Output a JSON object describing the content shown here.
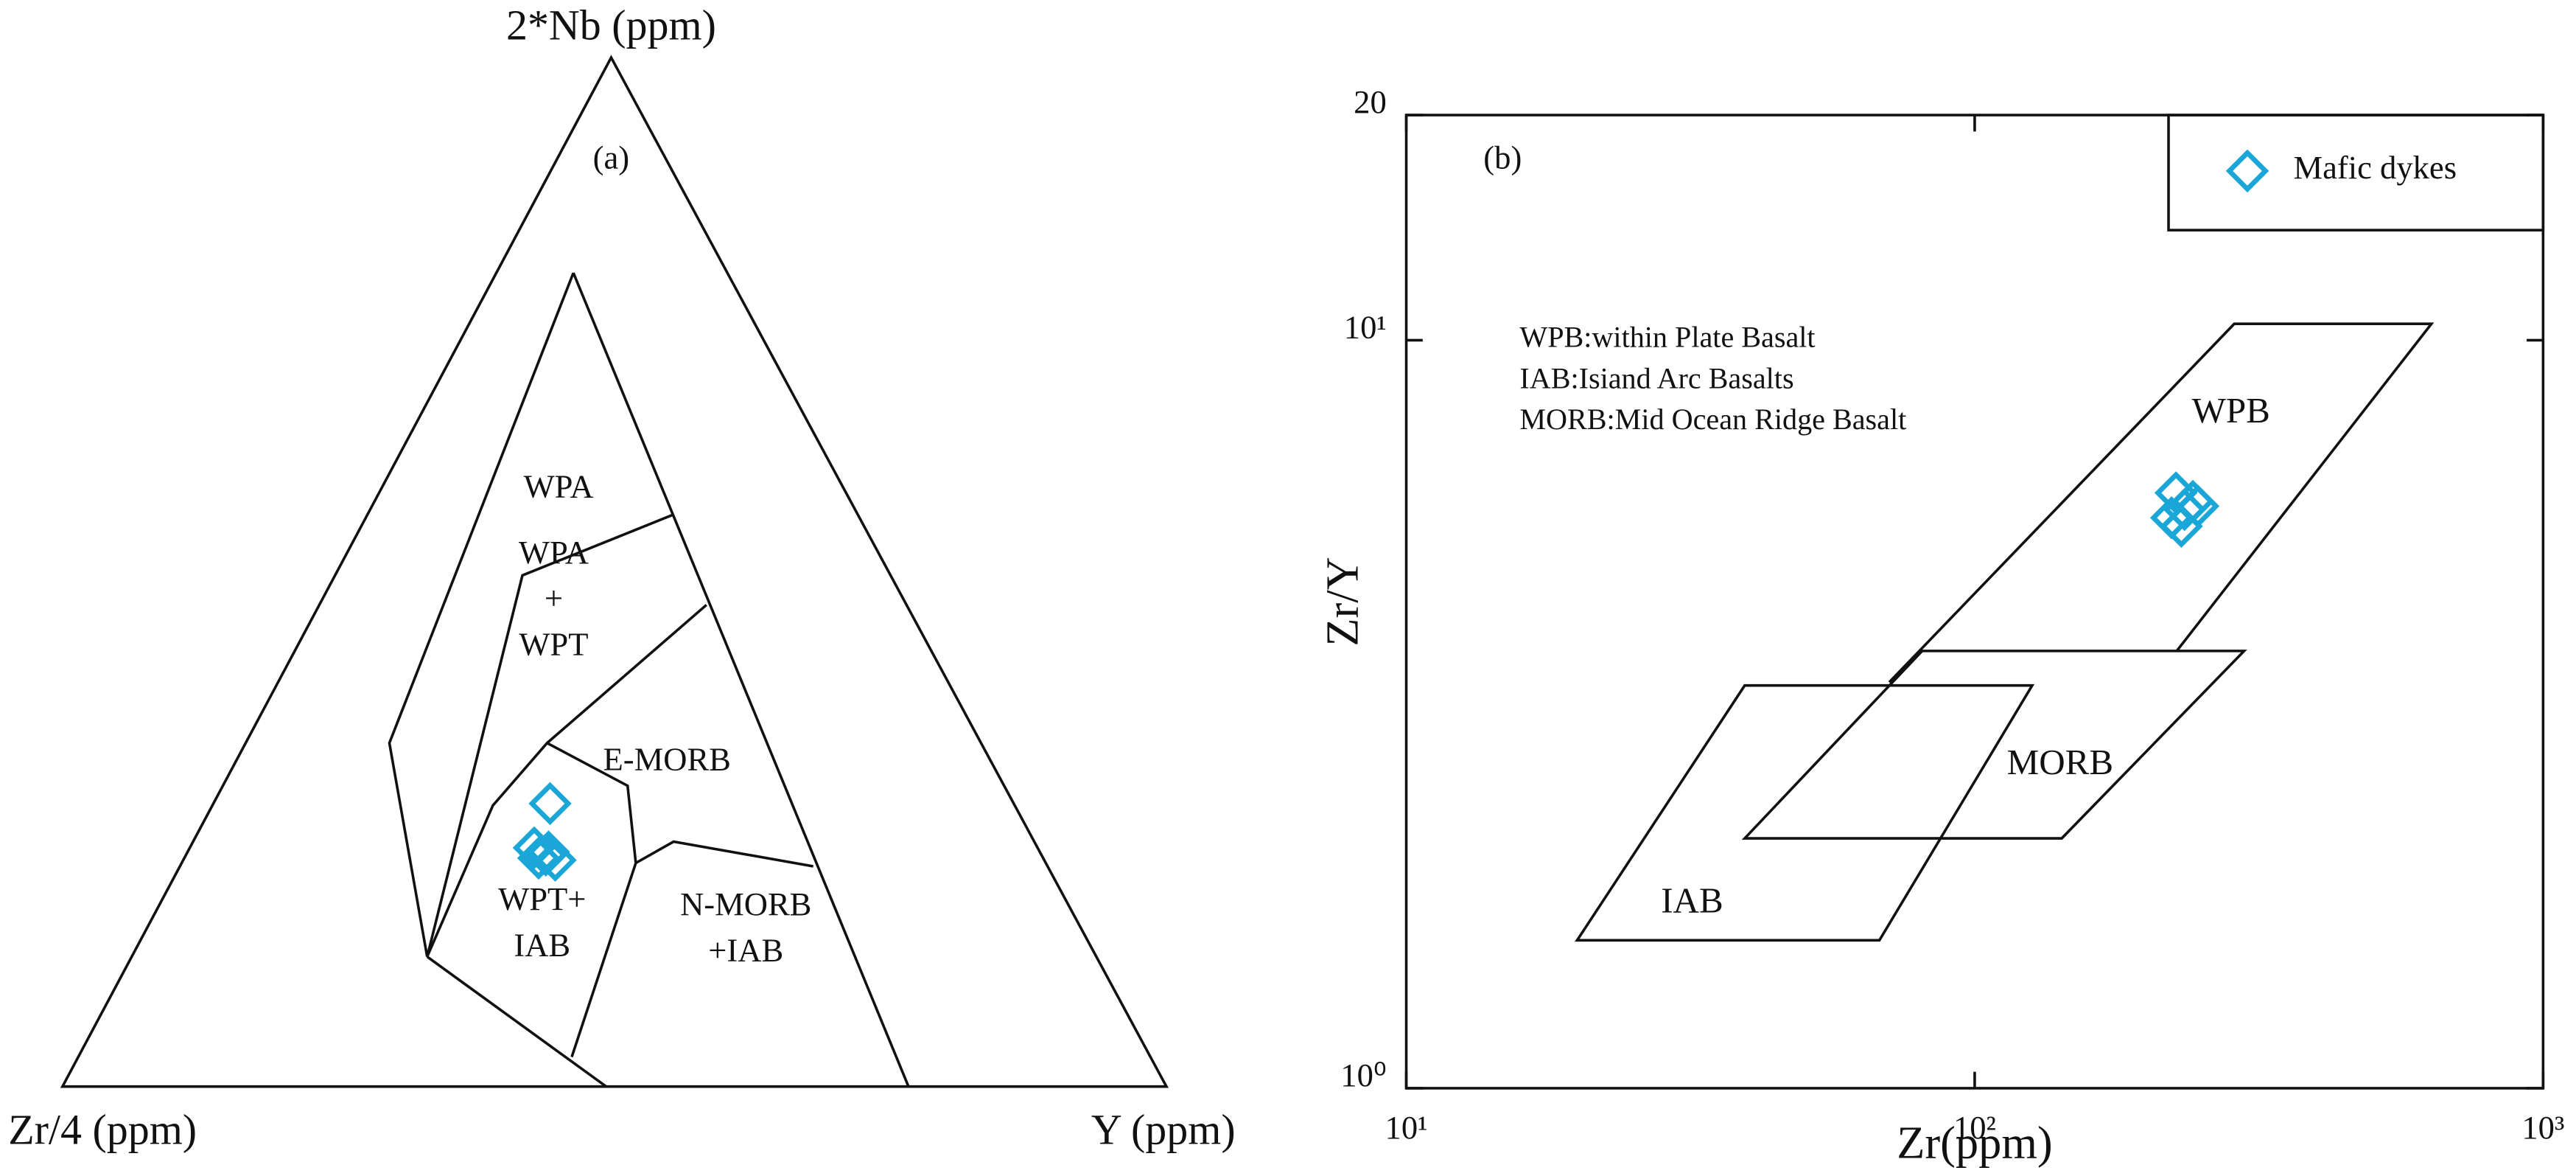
{
  "chart_data": [
    {
      "type": "ternary",
      "panel_label": "(a)",
      "axis_labels": {
        "top": "2*Nb (ppm)",
        "left": "Zr/4 (ppm)",
        "right": "Y (ppm)"
      },
      "region_labels": [
        [
          "WPA"
        ],
        [
          "WPA",
          "+",
          "WPT"
        ],
        [
          "E-MORB"
        ],
        [
          "WPT+",
          "IAB"
        ],
        [
          "N-MORB",
          "+IAB"
        ]
      ],
      "series": [
        {
          "color": "#1aa6d6",
          "left": [
            42.0,
            45.6,
            44.9,
            44.3,
            45.7,
            44.5
          ],
          "top": [
            27.5,
            23.2,
            22.5,
            22.0,
            22.2,
            22.8
          ],
          "right": [
            30.5,
            31.2,
            32.6,
            33.7,
            32.1,
            32.7
          ]
        }
      ]
    },
    {
      "type": "scatter",
      "panel_label": "(b)",
      "xlabel": "Zr(ppm)",
      "ylabel": "Zr/Y",
      "log_x": true,
      "log_y": true,
      "xlim": [
        10,
        1000
      ],
      "ylim": [
        1,
        20
      ],
      "xticks": [
        {
          "value": 10,
          "label": "10¹"
        },
        {
          "value": 100,
          "label": "10²"
        },
        {
          "value": 1000,
          "label": "10³"
        }
      ],
      "yticks": [
        {
          "value": 1,
          "label": "10⁰"
        },
        {
          "value": 10,
          "label": "10¹"
        },
        20
      ],
      "legend": "upper right",
      "annotations": [
        "WPB:within Plate Basalt",
        "IAB:Isiand Arc Basalts",
        "MORB:Mid Ocean Ridge Basalt"
      ],
      "region_labels": [
        "WPB",
        "MORB",
        "IAB"
      ],
      "series": [
        {
          "name": "Mafic dykes",
          "color": "#1aa6d6",
          "x": [
            226,
            234,
            242,
            222,
            231,
            247
          ],
          "y": [
            6.25,
            5.94,
            6.09,
            5.79,
            5.64,
            6.0
          ]
        }
      ]
    }
  ]
}
